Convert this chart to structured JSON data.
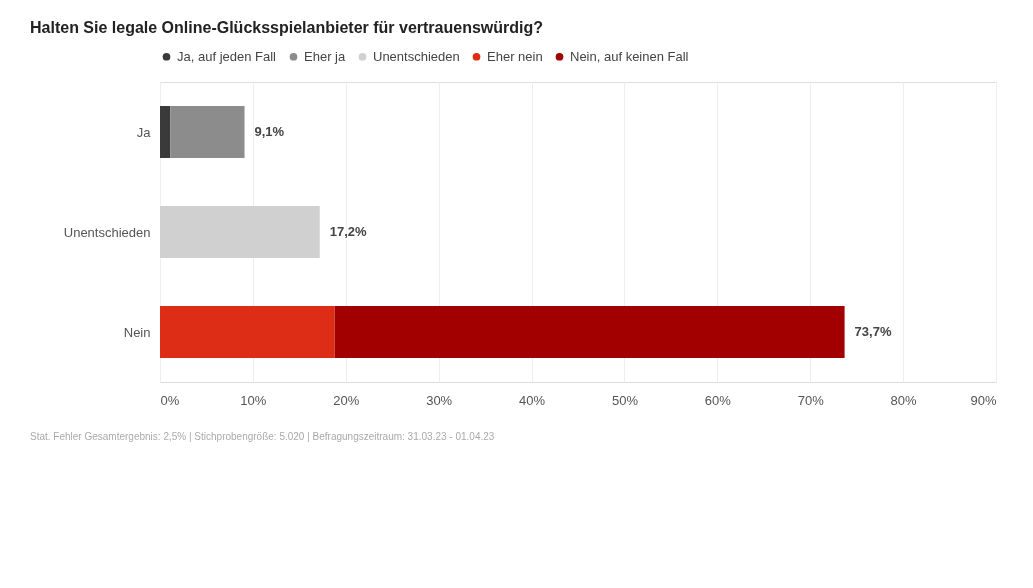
{
  "chart_data": {
    "type": "bar",
    "orientation": "horizontal",
    "stacked": true,
    "title": "Halten Sie legale Online-Glücksspielanbieter für vertrauenswürdig?",
    "categories": [
      "Ja",
      "Unentschieden",
      "Nein"
    ],
    "series": [
      {
        "name": "Ja, auf jeden Fall",
        "color": "#3a3a3a",
        "values": [
          1.1,
          null,
          null
        ]
      },
      {
        "name": "Eher ja",
        "color": "#8c8c8c",
        "values": [
          8.0,
          null,
          null
        ]
      },
      {
        "name": "Unentschieden",
        "color": "#d0d0d0",
        "values": [
          null,
          17.2,
          null
        ]
      },
      {
        "name": "Eher nein",
        "color": "#de2d16",
        "values": [
          null,
          null,
          18.8
        ]
      },
      {
        "name": "Nein, auf keinen Fall",
        "color": "#a20000",
        "values": [
          null,
          null,
          54.9
        ]
      }
    ],
    "totals": [
      "9,1%",
      "17,2%",
      "73,7%"
    ],
    "xlim": [
      0,
      90
    ],
    "xticks": [
      {
        "value": 0,
        "label": "0%"
      },
      {
        "value": 10,
        "label": "10%"
      },
      {
        "value": 20,
        "label": "20%"
      },
      {
        "value": 30,
        "label": "30%"
      },
      {
        "value": 40,
        "label": "40%"
      },
      {
        "value": 50,
        "label": "50%"
      },
      {
        "value": 60,
        "label": "60%"
      },
      {
        "value": 70,
        "label": "70%"
      },
      {
        "value": 80,
        "label": "80%"
      },
      {
        "value": 90,
        "label": "90%"
      }
    ],
    "grid": "x",
    "legend": "top",
    "annotations": [
      "Stat. Fehler Gesamtergebnis: 2,5% | Stichprobengröße: 5.020 | Befragungszeitraum: 31.03.23 - 01.04.23"
    ]
  }
}
